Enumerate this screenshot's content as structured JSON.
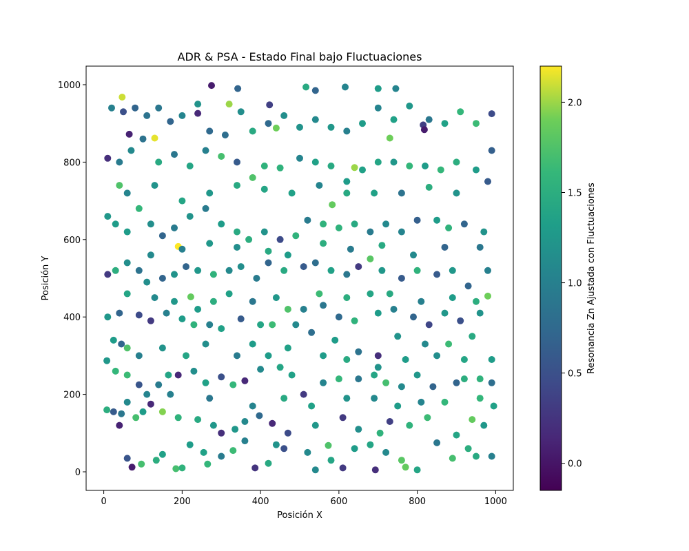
{
  "chart_data": {
    "type": "scatter",
    "title": "ADR & PSA - Estado Final bajo Fluctuaciones",
    "xlabel": "Posición X",
    "ylabel": "Posición Y",
    "xlim": [
      -45,
      1045
    ],
    "ylim": [
      -48,
      1048
    ],
    "xticks": [
      0,
      200,
      400,
      600,
      800,
      1000
    ],
    "yticks": [
      0,
      200,
      400,
      600,
      800,
      1000
    ],
    "grid": false,
    "colormap": "viridis",
    "colorbar": {
      "label": "Resonancia Zn Ajustada con Fluctuaciones",
      "min": -0.15,
      "max": 2.2,
      "ticks": [
        0.0,
        0.5,
        1.0,
        1.5,
        2.0
      ],
      "tick_labels": [
        "0.0",
        "0.5",
        "1.0",
        "1.5",
        "2.0"
      ]
    },
    "points": [
      [
        47,
        968,
        2.1
      ],
      [
        130,
        862,
        2.15
      ],
      [
        190,
        582,
        2.2
      ],
      [
        320,
        950,
        2.0
      ],
      [
        440,
        888,
        1.9
      ],
      [
        640,
        786,
        2.0
      ],
      [
        730,
        862,
        1.9
      ],
      [
        583,
        690,
        1.85
      ],
      [
        222,
        452,
        1.85
      ],
      [
        980,
        454,
        1.9
      ],
      [
        770,
        12,
        1.85
      ],
      [
        40,
        740,
        1.75
      ],
      [
        65,
        872,
        0.1
      ],
      [
        275,
        998,
        0.05
      ],
      [
        240,
        926,
        0.15
      ],
      [
        342,
        990,
        0.7
      ],
      [
        423,
        948,
        0.35
      ],
      [
        516,
        994,
        1.45
      ],
      [
        540,
        985,
        0.7
      ],
      [
        616,
        994,
        1.05
      ],
      [
        700,
        990,
        1.3
      ],
      [
        745,
        990,
        1.05
      ],
      [
        815,
        896,
        0.35
      ],
      [
        818,
        884,
        0.05
      ],
      [
        72,
        12,
        0.05
      ],
      [
        96,
        20,
        1.7
      ],
      [
        134,
        30,
        1.5
      ],
      [
        184,
        8,
        1.7
      ],
      [
        200,
        10,
        1.55
      ],
      [
        265,
        20,
        1.6
      ],
      [
        330,
        55,
        1.65
      ],
      [
        386,
        10,
        0.25
      ],
      [
        420,
        22,
        1.45
      ],
      [
        540,
        5,
        1.1
      ],
      [
        610,
        10,
        0.3
      ],
      [
        693,
        5,
        0.2
      ],
      [
        800,
        5,
        1.4
      ],
      [
        890,
        35,
        1.7
      ],
      [
        950,
        40,
        1.45
      ],
      [
        990,
        40,
        1.0
      ],
      [
        60,
        35,
        0.55
      ],
      [
        120,
        175,
        0.15
      ],
      [
        255,
        50,
        1.35
      ],
      [
        460,
        60,
        0.5
      ],
      [
        520,
        50,
        1.1
      ],
      [
        573,
        68,
        1.75
      ],
      [
        680,
        70,
        1.4
      ],
      [
        760,
        30,
        1.8
      ],
      [
        8,
        160,
        1.5
      ],
      [
        25,
        155,
        0.6
      ],
      [
        40,
        120,
        0.1
      ],
      [
        45,
        150,
        0.9
      ],
      [
        82,
        140,
        1.7
      ],
      [
        100,
        155,
        1.3
      ],
      [
        150,
        155,
        1.95
      ],
      [
        190,
        140,
        1.55
      ],
      [
        240,
        135,
        1.45
      ],
      [
        280,
        120,
        1.25
      ],
      [
        300,
        100,
        0.2
      ],
      [
        335,
        110,
        1.25
      ],
      [
        360,
        130,
        1.1
      ],
      [
        397,
        145,
        0.75
      ],
      [
        430,
        125,
        0.15
      ],
      [
        470,
        100,
        0.45
      ],
      [
        540,
        120,
        1.25
      ],
      [
        610,
        140,
        0.3
      ],
      [
        650,
        110,
        1.15
      ],
      [
        705,
        100,
        1.55
      ],
      [
        730,
        130,
        0.35
      ],
      [
        780,
        120,
        1.55
      ],
      [
        826,
        140,
        1.65
      ],
      [
        900,
        95,
        1.4
      ],
      [
        940,
        135,
        1.85
      ],
      [
        970,
        120,
        1.25
      ],
      [
        995,
        170,
        1.35
      ],
      [
        8,
        287,
        1.25
      ],
      [
        25,
        340,
        1.3
      ],
      [
        45,
        330,
        0.7
      ],
      [
        60,
        320,
        1.75
      ],
      [
        30,
        260,
        1.6
      ],
      [
        60,
        250,
        1.65
      ],
      [
        90,
        225,
        0.55
      ],
      [
        110,
        200,
        1.05
      ],
      [
        140,
        225,
        0.95
      ],
      [
        165,
        250,
        1.4
      ],
      [
        190,
        250,
        0.15
      ],
      [
        230,
        260,
        1.15
      ],
      [
        260,
        230,
        1.35
      ],
      [
        300,
        245,
        0.5
      ],
      [
        330,
        225,
        1.6
      ],
      [
        360,
        235,
        0.15
      ],
      [
        400,
        265,
        1.1
      ],
      [
        450,
        270,
        1.4
      ],
      [
        480,
        250,
        1.35
      ],
      [
        510,
        200,
        0.3
      ],
      [
        560,
        230,
        1.05
      ],
      [
        600,
        240,
        1.6
      ],
      [
        650,
        240,
        0.9
      ],
      [
        690,
        250,
        1.4
      ],
      [
        720,
        230,
        1.7
      ],
      [
        760,
        220,
        1.1
      ],
      [
        800,
        250,
        1.25
      ],
      [
        840,
        220,
        0.7
      ],
      [
        870,
        180,
        1.6
      ],
      [
        900,
        230,
        0.7
      ],
      [
        920,
        240,
        1.5
      ],
      [
        960,
        240,
        1.55
      ],
      [
        990,
        230,
        0.8
      ],
      [
        10,
        400,
        1.25
      ],
      [
        40,
        410,
        0.7
      ],
      [
        90,
        405,
        0.45
      ],
      [
        120,
        390,
        0.3
      ],
      [
        160,
        410,
        1.0
      ],
      [
        200,
        395,
        1.3
      ],
      [
        230,
        380,
        1.55
      ],
      [
        270,
        380,
        1.0
      ],
      [
        300,
        370,
        1.35
      ],
      [
        350,
        395,
        0.6
      ],
      [
        400,
        380,
        1.4
      ],
      [
        430,
        380,
        1.65
      ],
      [
        470,
        420,
        1.75
      ],
      [
        510,
        420,
        1.0
      ],
      [
        560,
        430,
        0.9
      ],
      [
        600,
        400,
        0.75
      ],
      [
        640,
        390,
        1.55
      ],
      [
        700,
        410,
        1.3
      ],
      [
        740,
        420,
        1.0
      ],
      [
        790,
        400,
        0.7
      ],
      [
        830,
        380,
        0.4
      ],
      [
        870,
        410,
        1.25
      ],
      [
        910,
        390,
        0.5
      ],
      [
        960,
        410,
        1.2
      ],
      [
        10,
        510,
        0.3
      ],
      [
        30,
        520,
        1.5
      ],
      [
        60,
        540,
        1.15
      ],
      [
        90,
        520,
        0.85
      ],
      [
        110,
        490,
        1.15
      ],
      [
        150,
        500,
        0.7
      ],
      [
        180,
        510,
        1.2
      ],
      [
        210,
        530,
        0.7
      ],
      [
        240,
        520,
        1.25
      ],
      [
        280,
        510,
        1.55
      ],
      [
        320,
        520,
        1.1
      ],
      [
        350,
        530,
        1.15
      ],
      [
        390,
        500,
        0.95
      ],
      [
        420,
        540,
        0.7
      ],
      [
        460,
        520,
        1.45
      ],
      [
        510,
        530,
        0.6
      ],
      [
        540,
        540,
        0.8
      ],
      [
        580,
        520,
        1.35
      ],
      [
        620,
        510,
        0.9
      ],
      [
        650,
        530,
        0.3
      ],
      [
        680,
        550,
        1.8
      ],
      [
        710,
        520,
        1.25
      ],
      [
        760,
        500,
        0.6
      ],
      [
        800,
        520,
        1.55
      ],
      [
        850,
        510,
        0.6
      ],
      [
        890,
        520,
        1.25
      ],
      [
        930,
        480,
        0.7
      ],
      [
        980,
        520,
        1.0
      ],
      [
        10,
        660,
        1.25
      ],
      [
        30,
        640,
        1.3
      ],
      [
        60,
        620,
        1.3
      ],
      [
        90,
        680,
        1.6
      ],
      [
        120,
        640,
        1.15
      ],
      [
        150,
        610,
        0.7
      ],
      [
        180,
        630,
        0.95
      ],
      [
        220,
        660,
        1.2
      ],
      [
        260,
        680,
        0.95
      ],
      [
        300,
        640,
        1.3
      ],
      [
        340,
        620,
        1.45
      ],
      [
        370,
        600,
        1.5
      ],
      [
        410,
        620,
        1.2
      ],
      [
        450,
        600,
        0.45
      ],
      [
        490,
        610,
        1.55
      ],
      [
        520,
        650,
        0.95
      ],
      [
        560,
        640,
        1.55
      ],
      [
        600,
        630,
        1.55
      ],
      [
        640,
        640,
        1.45
      ],
      [
        680,
        620,
        0.95
      ],
      [
        720,
        640,
        1.1
      ],
      [
        760,
        620,
        1.05
      ],
      [
        800,
        650,
        0.65
      ],
      [
        850,
        650,
        1.3
      ],
      [
        880,
        630,
        1.55
      ],
      [
        920,
        640,
        0.7
      ],
      [
        970,
        620,
        1.2
      ],
      [
        10,
        810,
        0.2
      ],
      [
        40,
        800,
        0.95
      ],
      [
        70,
        830,
        1.1
      ],
      [
        100,
        860,
        0.85
      ],
      [
        140,
        800,
        1.45
      ],
      [
        180,
        820,
        0.9
      ],
      [
        220,
        790,
        1.4
      ],
      [
        260,
        830,
        1.0
      ],
      [
        300,
        815,
        1.7
      ],
      [
        340,
        800,
        0.6
      ],
      [
        380,
        760,
        1.75
      ],
      [
        410,
        790,
        1.55
      ],
      [
        450,
        785,
        1.55
      ],
      [
        500,
        810,
        1.05
      ],
      [
        540,
        800,
        1.35
      ],
      [
        580,
        790,
        1.45
      ],
      [
        620,
        750,
        1.3
      ],
      [
        660,
        780,
        1.35
      ],
      [
        700,
        800,
        1.4
      ],
      [
        740,
        800,
        1.25
      ],
      [
        780,
        790,
        1.6
      ],
      [
        820,
        790,
        1.3
      ],
      [
        860,
        780,
        1.6
      ],
      [
        900,
        800,
        1.5
      ],
      [
        950,
        780,
        1.3
      ],
      [
        990,
        830,
        0.65
      ],
      [
        20,
        940,
        1.0
      ],
      [
        50,
        930,
        0.5
      ],
      [
        80,
        940,
        0.7
      ],
      [
        110,
        920,
        0.85
      ],
      [
        140,
        940,
        0.9
      ],
      [
        170,
        905,
        0.7
      ],
      [
        200,
        920,
        1.05
      ],
      [
        240,
        950,
        1.2
      ],
      [
        270,
        880,
        0.75
      ],
      [
        310,
        870,
        0.8
      ],
      [
        350,
        930,
        1.15
      ],
      [
        380,
        880,
        1.45
      ],
      [
        420,
        900,
        0.75
      ],
      [
        460,
        920,
        1.15
      ],
      [
        500,
        890,
        1.2
      ],
      [
        540,
        910,
        1.1
      ],
      [
        580,
        890,
        1.25
      ],
      [
        620,
        880,
        1.0
      ],
      [
        660,
        900,
        1.3
      ],
      [
        700,
        940,
        1.05
      ],
      [
        740,
        910,
        1.35
      ],
      [
        780,
        945,
        1.25
      ],
      [
        830,
        910,
        0.9
      ],
      [
        870,
        900,
        1.35
      ],
      [
        910,
        930,
        1.6
      ],
      [
        950,
        900,
        1.65
      ],
      [
        990,
        925,
        0.45
      ],
      [
        320,
        460,
        1.35
      ],
      [
        260,
        330,
        1.15
      ],
      [
        420,
        300,
        1.3
      ],
      [
        490,
        380,
        1.1
      ],
      [
        530,
        360,
        0.8
      ],
      [
        590,
        340,
        1.3
      ],
      [
        650,
        310,
        0.85
      ],
      [
        700,
        300,
        0.2
      ],
      [
        750,
        350,
        1.2
      ],
      [
        820,
        330,
        1.1
      ],
      [
        880,
        330,
        1.65
      ],
      [
        940,
        350,
        1.45
      ],
      [
        120,
        560,
        1.1
      ],
      [
        200,
        575,
        1.0
      ],
      [
        270,
        590,
        1.25
      ],
      [
        340,
        580,
        1.15
      ],
      [
        420,
        570,
        1.45
      ],
      [
        470,
        560,
        1.3
      ],
      [
        560,
        590,
        1.5
      ],
      [
        630,
        575,
        0.95
      ],
      [
        710,
        585,
        1.45
      ],
      [
        790,
        560,
        1.1
      ],
      [
        870,
        580,
        0.7
      ],
      [
        960,
        580,
        0.9
      ],
      [
        60,
        720,
        1.05
      ],
      [
        130,
        740,
        1.2
      ],
      [
        200,
        700,
        1.4
      ],
      [
        270,
        720,
        1.25
      ],
      [
        340,
        740,
        1.45
      ],
      [
        410,
        730,
        1.4
      ],
      [
        480,
        720,
        1.35
      ],
      [
        550,
        740,
        1.05
      ],
      [
        620,
        720,
        1.45
      ],
      [
        690,
        720,
        1.35
      ],
      [
        760,
        720,
        0.85
      ],
      [
        830,
        735,
        1.5
      ],
      [
        900,
        720,
        1.2
      ],
      [
        980,
        750,
        0.6
      ],
      [
        150,
        45,
        1.35
      ],
      [
        220,
        70,
        1.3
      ],
      [
        300,
        40,
        0.95
      ],
      [
        360,
        80,
        1.0
      ],
      [
        440,
        70,
        1.2
      ],
      [
        580,
        30,
        1.4
      ],
      [
        640,
        60,
        1.3
      ],
      [
        720,
        50,
        1.1
      ],
      [
        850,
        75,
        0.9
      ],
      [
        930,
        60,
        1.5
      ],
      [
        60,
        180,
        1.1
      ],
      [
        170,
        200,
        1.0
      ],
      [
        270,
        190,
        0.9
      ],
      [
        380,
        170,
        1.05
      ],
      [
        460,
        190,
        1.45
      ],
      [
        530,
        170,
        1.35
      ],
      [
        620,
        190,
        1.2
      ],
      [
        690,
        190,
        1.1
      ],
      [
        750,
        170,
        1.3
      ],
      [
        810,
        180,
        1.05
      ],
      [
        960,
        190,
        1.6
      ],
      [
        240,
        420,
        1.3
      ],
      [
        60,
        460,
        1.4
      ],
      [
        130,
        450,
        1.1
      ],
      [
        180,
        440,
        1.25
      ],
      [
        280,
        440,
        1.5
      ],
      [
        380,
        440,
        0.9
      ],
      [
        440,
        450,
        1.25
      ],
      [
        550,
        460,
        1.65
      ],
      [
        620,
        450,
        1.5
      ],
      [
        680,
        460,
        1.4
      ],
      [
        730,
        460,
        1.45
      ],
      [
        810,
        440,
        1.0
      ],
      [
        890,
        450,
        1.3
      ],
      [
        950,
        440,
        1.5
      ],
      [
        90,
        300,
        1.0
      ],
      [
        150,
        320,
        1.2
      ],
      [
        210,
        300,
        1.4
      ],
      [
        340,
        300,
        0.95
      ],
      [
        380,
        330,
        1.3
      ],
      [
        470,
        320,
        1.35
      ],
      [
        560,
        300,
        1.3
      ],
      [
        620,
        290,
        1.45
      ],
      [
        700,
        270,
        1.2
      ],
      [
        770,
        290,
        1.3
      ],
      [
        850,
        300,
        1.15
      ],
      [
        920,
        290,
        1.4
      ],
      [
        990,
        290,
        1.3
      ]
    ]
  }
}
